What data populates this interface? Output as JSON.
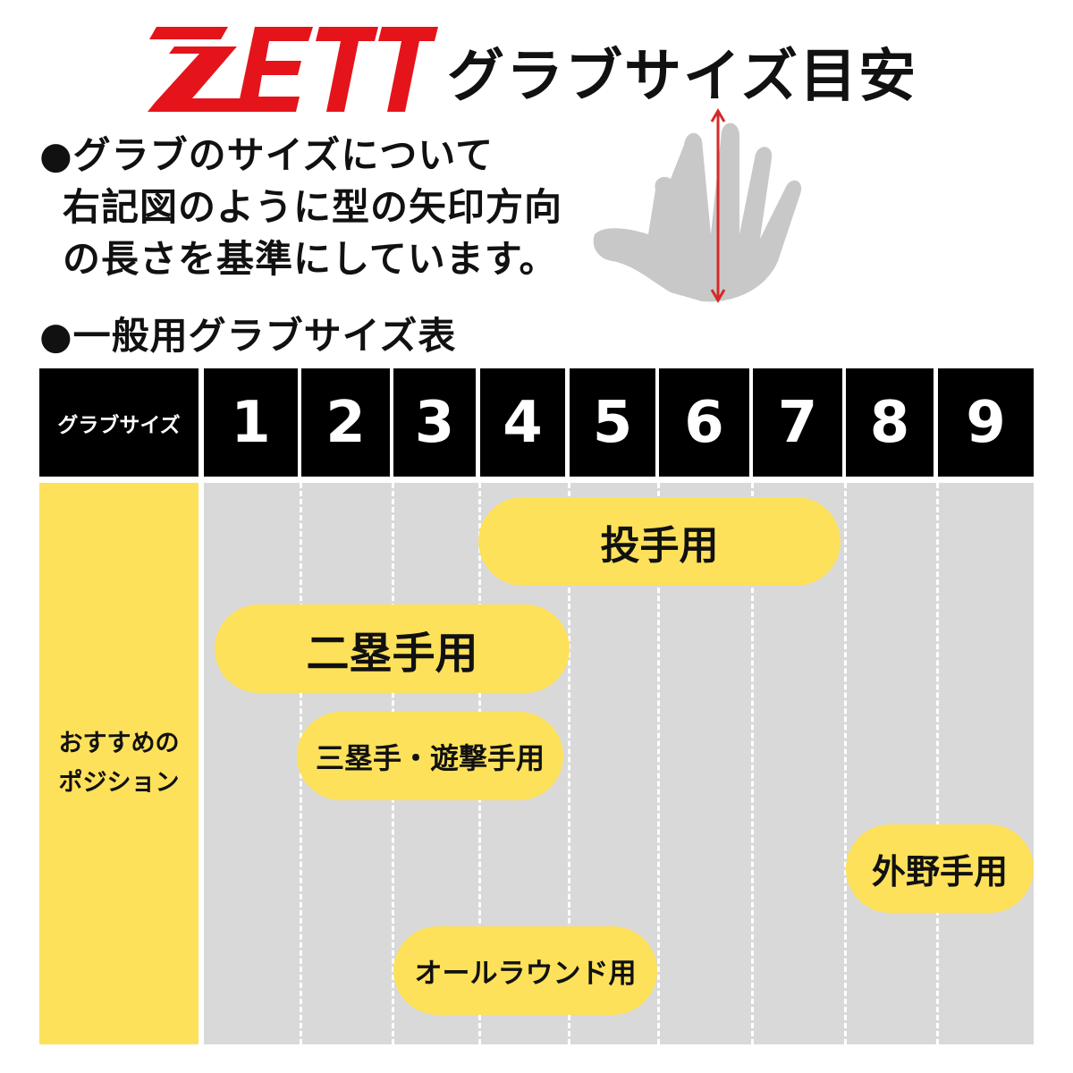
{
  "logo": {
    "text": "ZETT",
    "color": "#e5141b"
  },
  "title": "グラブサイズ目安",
  "about": {
    "heading": "●グラブのサイズについて",
    "lines": [
      "右記図のように型の矢印方向",
      "の長さを基準にしています。"
    ]
  },
  "hand_illustration": {
    "icon": "hand-measure-icon",
    "arrow_color": "#d42a2a",
    "hand_color": "#c8c8c8"
  },
  "table_heading": "●一般用グラブサイズ表",
  "table": {
    "header_label": "グラブサイズ",
    "sizes": [
      "1",
      "2",
      "3",
      "4",
      "5",
      "6",
      "7",
      "8",
      "9"
    ],
    "row_label_line1": "おすすめの",
    "row_label_line2": "ポジション",
    "positions": [
      {
        "label": "投手用",
        "from_size": 4,
        "to_size": 7
      },
      {
        "label": "二塁手用",
        "from_size": 1,
        "to_size": 4
      },
      {
        "label": "三塁手・遊撃手用",
        "from_size": 2,
        "to_size": 4
      },
      {
        "label": "外野手用",
        "from_size": 8,
        "to_size": 9
      },
      {
        "label": "オールラウンド用",
        "from_size": 3,
        "to_size": 5
      }
    ]
  },
  "colors": {
    "header_bg": "#000000",
    "highlight": "#fde15a",
    "grid_bg": "#d9d9d9"
  }
}
